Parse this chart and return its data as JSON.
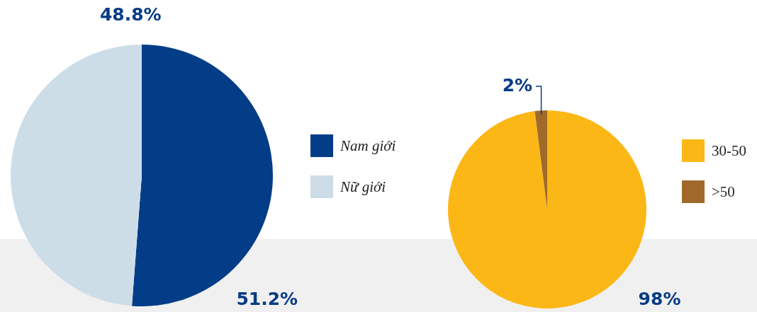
{
  "chart_data": [
    {
      "type": "pie",
      "categories": [
        "Nam giới",
        "Nữ giới"
      ],
      "values": [
        51.2,
        48.8
      ],
      "colors": [
        "#033d87",
        "#cddde8"
      ],
      "value_labels": [
        "51.2%",
        "48.8%"
      ],
      "legend": "right"
    },
    {
      "type": "pie",
      "categories": [
        "30-50",
        ">50"
      ],
      "values": [
        98,
        2
      ],
      "colors": [
        "#fbb715",
        "#a0692a"
      ],
      "value_labels": [
        "98%",
        "2%"
      ],
      "legend": "right"
    }
  ]
}
